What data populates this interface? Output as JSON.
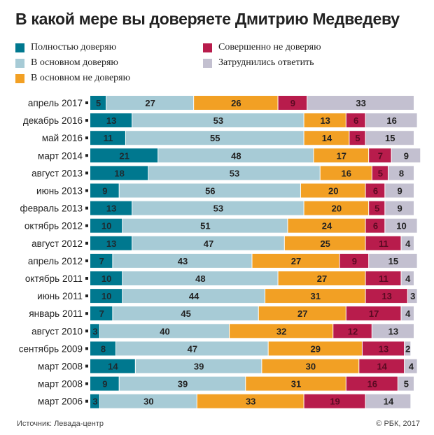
{
  "chart_data": {
    "type": "bar",
    "orientation": "horizontal",
    "stacked": true,
    "title": "В какой мере вы доверяете Дмитрию Медведеву",
    "categories": [
      "апрель 2017",
      "декабрь 2016",
      "май 2016",
      "март 2014",
      "август 2013",
      "июнь 2013",
      "февраль 2013",
      "октябрь 2012",
      "август 2012",
      "апрель 2012",
      "октябрь 2011",
      "июнь 2011",
      "январь 2011",
      "август 2010",
      "сентябрь 2009",
      "март 2008",
      "март 2008",
      "март 2006"
    ],
    "series": [
      {
        "name": "Полностью доверяю",
        "color": "#00788f",
        "values": [
          5,
          13,
          11,
          21,
          18,
          9,
          13,
          10,
          13,
          7,
          10,
          10,
          7,
          3,
          8,
          14,
          9,
          3
        ]
      },
      {
        "name": "В основном доверяю",
        "color": "#a7cbd6",
        "values": [
          27,
          53,
          55,
          48,
          53,
          56,
          53,
          51,
          47,
          43,
          48,
          44,
          45,
          40,
          47,
          39,
          39,
          30
        ]
      },
      {
        "name": "В основном не доверяю",
        "color": "#f2a024",
        "values": [
          26,
          13,
          14,
          17,
          16,
          20,
          20,
          24,
          25,
          27,
          27,
          31,
          27,
          32,
          29,
          30,
          31,
          33
        ]
      },
      {
        "name": "Совершенно не доверяю",
        "color": "#b81c4c",
        "values": [
          9,
          6,
          5,
          7,
          5,
          6,
          5,
          6,
          11,
          9,
          11,
          13,
          17,
          12,
          13,
          14,
          16,
          19
        ]
      },
      {
        "name": "Затруднились ответить",
        "color": "#c3c0d0",
        "values": [
          33,
          16,
          15,
          9,
          8,
          9,
          9,
          10,
          4,
          15,
          4,
          3,
          4,
          13,
          2,
          4,
          5,
          14
        ]
      }
    ],
    "xlim": [
      0,
      100
    ],
    "grid": false,
    "legend_placement": "top"
  },
  "footer": {
    "source": "Источник: Левада-центр",
    "copyright": "© РБК, 2017"
  }
}
